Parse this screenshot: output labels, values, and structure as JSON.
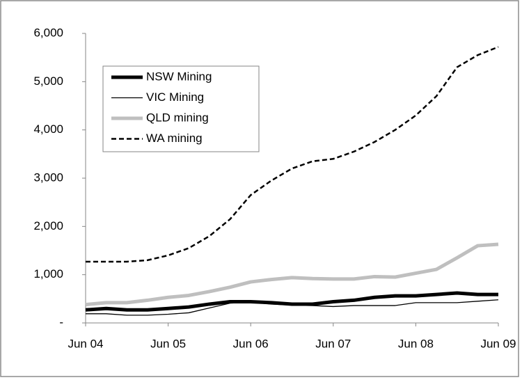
{
  "chart_data": {
    "type": "line",
    "categories": [
      "Jun 04",
      null,
      null,
      null,
      "Jun 05",
      null,
      null,
      null,
      "Jun 06",
      null,
      null,
      null,
      "Jun 07",
      null,
      null,
      null,
      "Jun 08",
      null,
      null,
      null,
      "Jun 09"
    ],
    "series": [
      {
        "name": "NSW Mining",
        "color": "#000000",
        "width": 5,
        "dash": false,
        "values": [
          270,
          300,
          270,
          270,
          300,
          330,
          390,
          440,
          440,
          420,
          390,
          390,
          440,
          470,
          530,
          560,
          560,
          590,
          620,
          590,
          590
        ]
      },
      {
        "name": "VIC Mining",
        "color": "#000000",
        "width": 1.3,
        "dash": false,
        "values": [
          190,
          190,
          160,
          160,
          180,
          210,
          310,
          410,
          430,
          390,
          370,
          360,
          340,
          360,
          360,
          360,
          420,
          420,
          420,
          450,
          480
        ]
      },
      {
        "name": "QLD mining",
        "color": "#bfbfbf",
        "width": 5,
        "dash": false,
        "values": [
          380,
          420,
          420,
          470,
          530,
          570,
          650,
          740,
          850,
          900,
          940,
          920,
          910,
          910,
          960,
          950,
          1030,
          1110,
          1350,
          1600,
          1630
        ]
      },
      {
        "name": "WA mining",
        "color": "#000000",
        "width": 2.5,
        "dash": true,
        "values": [
          1270,
          1270,
          1270,
          1300,
          1400,
          1550,
          1800,
          2150,
          2650,
          2950,
          3200,
          3350,
          3400,
          3550,
          3750,
          4000,
          4300,
          4700,
          5300,
          5550,
          5720
        ]
      }
    ],
    "ylim": [
      0,
      6000
    ],
    "yticks": [
      {
        "value": 0,
        "label": "-"
      },
      {
        "value": 1000,
        "label": "1,000"
      },
      {
        "value": 2000,
        "label": "2,000"
      },
      {
        "value": 3000,
        "label": "3,000"
      },
      {
        "value": 4000,
        "label": "4,000"
      },
      {
        "value": 5000,
        "label": "5,000"
      },
      {
        "value": 6000,
        "label": "6,000"
      }
    ],
    "grid": false
  }
}
